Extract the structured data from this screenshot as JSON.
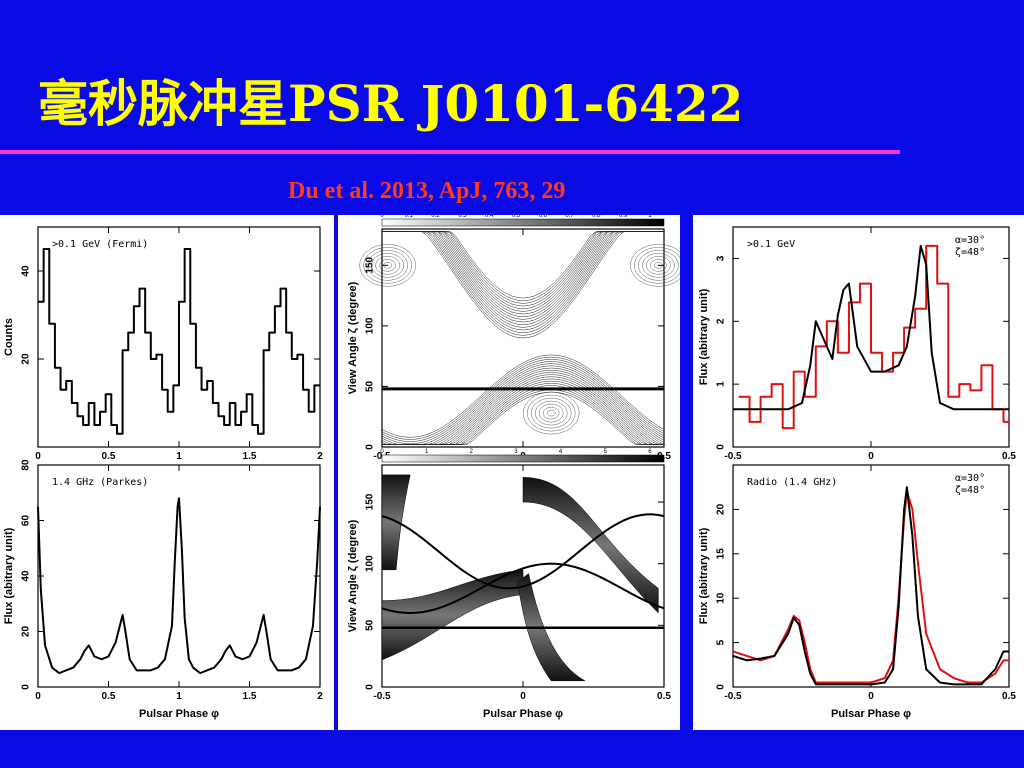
{
  "slide": {
    "title": "毫秒脉冲星PSR J0101-6422",
    "citation": "Du et al. 2013, ApJ, 763, 29",
    "accent_rule_color": "#ff33cc",
    "background_color": "#0a0ae6"
  },
  "chart_data": [
    {
      "id": "left-top",
      "type": "line",
      "step": true,
      "annotation": ">0.1 GeV (Fermi)",
      "xlabel": "",
      "ylabel": "Counts",
      "xlim": [
        0,
        2
      ],
      "ylim": [
        0,
        50
      ],
      "xticks": [
        "0",
        "0.5",
        "1",
        "1.5",
        "2"
      ],
      "yticks": [
        "20",
        "40"
      ],
      "series": [
        {
          "color": "#000000",
          "x": [
            0,
            0.04,
            0.08,
            0.12,
            0.16,
            0.2,
            0.24,
            0.28,
            0.32,
            0.36,
            0.4,
            0.44,
            0.48,
            0.52,
            0.56,
            0.6,
            0.64,
            0.68,
            0.72,
            0.76,
            0.8,
            0.84,
            0.88,
            0.92,
            0.96,
            1.0,
            1.04,
            1.08,
            1.12,
            1.16,
            1.2,
            1.24,
            1.28,
            1.32,
            1.36,
            1.4,
            1.44,
            1.48,
            1.52,
            1.56,
            1.6,
            1.64,
            1.68,
            1.72,
            1.76,
            1.8,
            1.84,
            1.88,
            1.92,
            1.96
          ],
          "y": [
            33,
            45,
            28,
            18,
            13,
            15,
            10,
            7,
            5,
            10,
            5,
            8,
            12,
            5,
            3,
            22,
            26,
            32,
            36,
            26,
            20,
            21,
            13,
            8,
            14,
            33,
            45,
            28,
            18,
            13,
            15,
            10,
            7,
            5,
            10,
            5,
            8,
            12,
            5,
            3,
            22,
            26,
            32,
            36,
            26,
            20,
            21,
            13,
            8,
            14
          ]
        }
      ]
    },
    {
      "id": "left-bottom",
      "type": "line",
      "annotation": "1.4 GHz (Parkes)",
      "xlabel": "Pulsar Phase φ",
      "ylabel": "Flux (abitrary unit)",
      "xlim": [
        0,
        2
      ],
      "ylim": [
        0,
        80
      ],
      "xticks": [
        "0",
        "0.5",
        "1",
        "1.5",
        "2"
      ],
      "yticks": [
        "0",
        "20",
        "40",
        "60",
        "80"
      ],
      "series": [
        {
          "color": "#000000",
          "x": [
            0,
            0.02,
            0.05,
            0.1,
            0.15,
            0.2,
            0.25,
            0.3,
            0.33,
            0.36,
            0.4,
            0.45,
            0.5,
            0.55,
            0.58,
            0.6,
            0.62,
            0.65,
            0.7,
            0.75,
            0.8,
            0.85,
            0.9,
            0.95,
            0.97,
            0.99,
            1.0,
            1.02,
            1.04,
            1.07,
            1.1,
            1.15,
            1.2,
            1.25,
            1.3,
            1.33,
            1.36,
            1.4,
            1.45,
            1.5,
            1.55,
            1.58,
            1.6,
            1.62,
            1.65,
            1.7,
            1.75,
            1.8,
            1.85,
            1.9,
            1.95,
            1.98,
            2.0
          ],
          "y": [
            65,
            35,
            15,
            7,
            5,
            6,
            7,
            10,
            13,
            15,
            11,
            10,
            11,
            16,
            22,
            26,
            20,
            10,
            6,
            6,
            6,
            7,
            10,
            22,
            45,
            65,
            68,
            50,
            25,
            10,
            7,
            5,
            6,
            7,
            10,
            13,
            15,
            11,
            10,
            11,
            16,
            22,
            26,
            20,
            10,
            6,
            6,
            6,
            7,
            10,
            22,
            45,
            65
          ]
        }
      ]
    },
    {
      "id": "mid-top",
      "type": "heatmap",
      "colorbar_ticks": [
        "0",
        "0.1",
        "0.2",
        "0.3",
        "0.4",
        "0.5",
        "0.6",
        "0.7",
        "0.8",
        "0.9",
        "1"
      ],
      "xlabel": "",
      "ylabel": "View Angle ζ (degree)",
      "xlim": [
        -0.5,
        0.5
      ],
      "ylim": [
        0,
        180
      ],
      "xticks": [
        "-0.5",
        "0",
        "0.5"
      ],
      "yticks": [
        "0",
        "50",
        "100",
        "150"
      ],
      "reference_line_y": 48
    },
    {
      "id": "mid-bottom",
      "type": "heatmap",
      "colorbar_ticks": [
        "0",
        "1",
        "2",
        "3",
        "4",
        "5",
        "6"
      ],
      "xlabel": "Pulsar Phase φ",
      "ylabel": "View Angle ζ (degree)",
      "xlim": [
        -0.5,
        0.5
      ],
      "ylim": [
        0,
        180
      ],
      "xticks": [
        "-0.5",
        "0",
        "0.5"
      ],
      "yticks": [
        "0",
        "50",
        "100",
        "150"
      ],
      "reference_line_y": 48
    },
    {
      "id": "right-top",
      "type": "line",
      "annotation": ">0.1 GeV",
      "params": [
        "α=30°",
        "ζ=48°"
      ],
      "xlabel": "",
      "ylabel": "Flux (abitrary unit)",
      "xlim": [
        -0.5,
        0.5
      ],
      "ylim": [
        0,
        3.5
      ],
      "xticks": [
        "-0.5",
        "0",
        "0.5"
      ],
      "yticks": [
        "0",
        "1",
        "2",
        "3"
      ],
      "series": [
        {
          "color": "#e01010",
          "step": true,
          "x": [
            -0.48,
            -0.44,
            -0.4,
            -0.36,
            -0.32,
            -0.28,
            -0.24,
            -0.2,
            -0.16,
            -0.12,
            -0.08,
            -0.04,
            0,
            0.04,
            0.08,
            0.12,
            0.16,
            0.2,
            0.24,
            0.28,
            0.32,
            0.36,
            0.4,
            0.44,
            0.48
          ],
          "y": [
            0.8,
            0.4,
            0.8,
            1.0,
            0.3,
            1.2,
            0.8,
            1.6,
            2.0,
            1.5,
            2.3,
            2.6,
            1.5,
            1.2,
            1.5,
            1.9,
            2.2,
            3.2,
            2.6,
            0.8,
            1.0,
            0.9,
            1.3,
            0.6,
            0.4
          ]
        },
        {
          "color": "#000000",
          "x": [
            -0.5,
            -0.4,
            -0.3,
            -0.25,
            -0.22,
            -0.2,
            -0.17,
            -0.14,
            -0.12,
            -0.1,
            -0.08,
            -0.05,
            0,
            0.05,
            0.1,
            0.13,
            0.16,
            0.18,
            0.2,
            0.22,
            0.25,
            0.3,
            0.4,
            0.5
          ],
          "y": [
            0.6,
            0.6,
            0.6,
            0.7,
            1.3,
            2.0,
            1.7,
            1.4,
            2.1,
            2.5,
            2.6,
            1.6,
            1.2,
            1.2,
            1.3,
            1.6,
            2.4,
            3.2,
            2.9,
            1.5,
            0.7,
            0.6,
            0.6,
            0.6
          ]
        }
      ]
    },
    {
      "id": "right-bottom",
      "type": "line",
      "annotation": "Radio (1.4 GHz)",
      "params": [
        "α=30°",
        "ζ=48°"
      ],
      "xlabel": "Pulsar Phase φ",
      "ylabel": "Flux (abitrary unit)",
      "xlim": [
        -0.5,
        0.5
      ],
      "ylim": [
        0,
        25
      ],
      "xticks": [
        "-0.5",
        "0",
        "0.5"
      ],
      "yticks": [
        "0",
        "5",
        "10",
        "15",
        "20"
      ],
      "series": [
        {
          "color": "#e01010",
          "x": [
            -0.5,
            -0.45,
            -0.4,
            -0.35,
            -0.3,
            -0.28,
            -0.26,
            -0.24,
            -0.22,
            -0.2,
            -0.15,
            -0.1,
            -0.05,
            0,
            0.05,
            0.08,
            0.1,
            0.12,
            0.13,
            0.15,
            0.17,
            0.2,
            0.25,
            0.3,
            0.35,
            0.4,
            0.45,
            0.48,
            0.5
          ],
          "y": [
            4,
            3.5,
            3,
            3.5,
            6.5,
            8,
            7.5,
            5,
            2,
            0.5,
            0.5,
            0.5,
            0.5,
            0.5,
            1,
            3,
            10,
            19,
            22,
            20,
            14,
            6,
            2,
            1,
            0.5,
            0.5,
            1.5,
            3,
            3
          ]
        },
        {
          "color": "#000000",
          "x": [
            -0.5,
            -0.45,
            -0.4,
            -0.35,
            -0.3,
            -0.28,
            -0.26,
            -0.24,
            -0.22,
            -0.2,
            -0.15,
            -0.1,
            -0.05,
            0,
            0.05,
            0.08,
            0.1,
            0.12,
            0.13,
            0.15,
            0.17,
            0.2,
            0.25,
            0.3,
            0.35,
            0.4,
            0.45,
            0.48,
            0.5
          ],
          "y": [
            3.5,
            3,
            3.2,
            3.5,
            6,
            7.8,
            7,
            4,
            1.5,
            0.3,
            0.3,
            0.3,
            0.3,
            0.3,
            0.5,
            2,
            9,
            20,
            22.5,
            17,
            8,
            2,
            0.5,
            0.3,
            0.3,
            0.3,
            2,
            4,
            4
          ]
        }
      ]
    }
  ]
}
